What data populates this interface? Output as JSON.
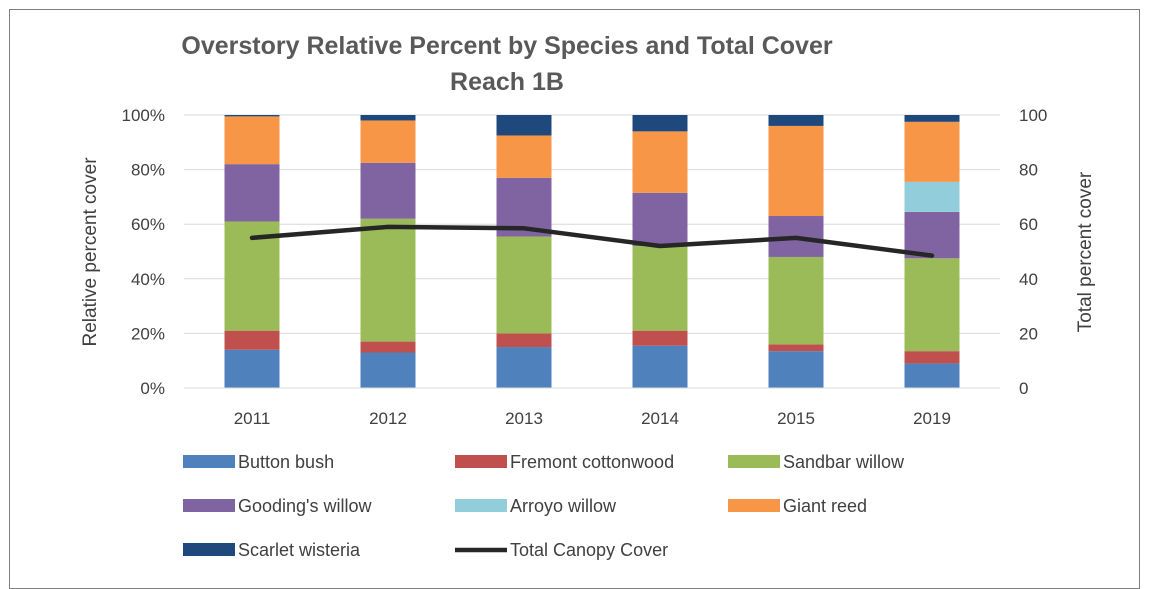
{
  "chart_data": {
    "type": "bar",
    "stacked": true,
    "title": "Overstory Relative Percent by Species and Total Cover",
    "subtitle": "Reach 1B",
    "categories": [
      "2011",
      "2012",
      "2013",
      "2014",
      "2015",
      "2019"
    ],
    "ylabel": "Relative percent cover",
    "y2label": "Total percent cover",
    "ylim": [
      0,
      100
    ],
    "y2lim": [
      0,
      100
    ],
    "yticks": [
      "0%",
      "20%",
      "40%",
      "60%",
      "80%",
      "100%"
    ],
    "y2ticks": [
      "0",
      "20",
      "40",
      "60",
      "80",
      "100"
    ],
    "grid": true,
    "legend_position": "bottom",
    "series": [
      {
        "name": "Button bush",
        "color": "#4f81bd",
        "values": [
          14,
          13,
          15,
          15.5,
          13.5,
          9
        ]
      },
      {
        "name": "Fremont cottonwood",
        "color": "#c0504d",
        "values": [
          7,
          4,
          5,
          5.5,
          2.5,
          4.5
        ]
      },
      {
        "name": "Sandbar willow",
        "color": "#9bbb59",
        "values": [
          40,
          45,
          35.5,
          31,
          32,
          34
        ]
      },
      {
        "name": "Gooding's willow",
        "color": "#8064a2",
        "values": [
          21,
          20.5,
          21.5,
          19.5,
          15,
          17
        ]
      },
      {
        "name": "Arroyo willow",
        "color": "#92cddc",
        "values": [
          0,
          0,
          0,
          0,
          0,
          11
        ]
      },
      {
        "name": "Giant reed",
        "color": "#f79646",
        "values": [
          17.5,
          15.5,
          15.5,
          22.5,
          33,
          22
        ]
      },
      {
        "name": "Scarlet wisteria",
        "color": "#1f497d",
        "values": [
          0.5,
          2,
          7.5,
          6,
          4,
          2.5
        ]
      }
    ],
    "line_series": {
      "name": "Total Canopy Cover",
      "color": "#262626",
      "axis": "secondary",
      "values": [
        55,
        59,
        58.5,
        52,
        55,
        48.5
      ]
    }
  }
}
